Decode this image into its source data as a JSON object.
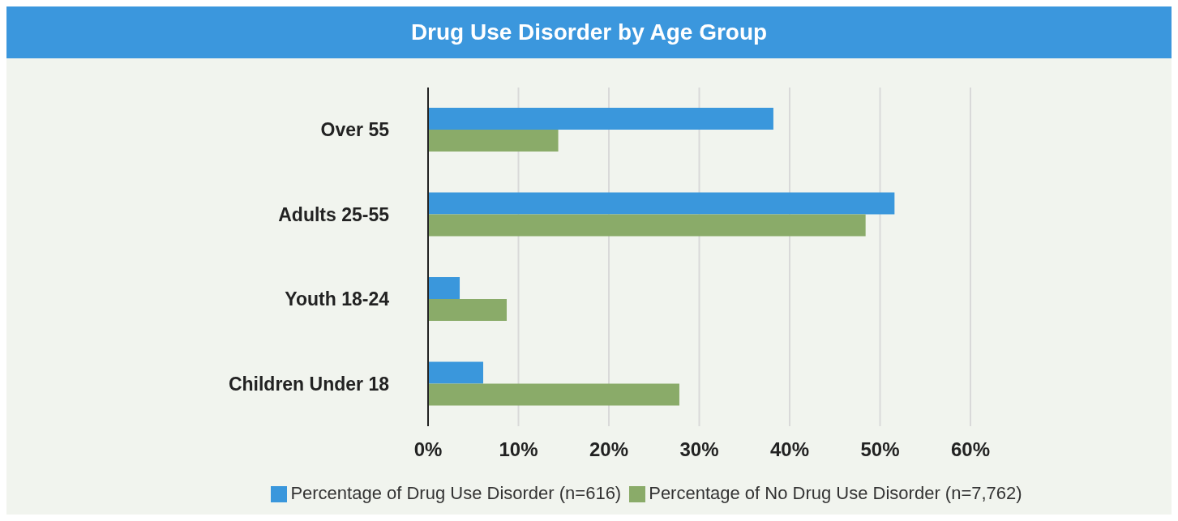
{
  "chart_data": {
    "type": "bar",
    "orientation": "horizontal",
    "title": "Drug Use Disorder by Age Group",
    "categories": [
      "Over 55",
      "Adults 25-55",
      "Youth 18-24",
      "Children Under 18"
    ],
    "series": [
      {
        "name": "Percentage of Drug Use Disorder (n=616)",
        "color": "#3a97dc",
        "values": [
          38.2,
          51.6,
          3.5,
          6.1
        ]
      },
      {
        "name": "Percentage of No Drug Use Disorder (n=7,762)",
        "color": "#8aab69",
        "values": [
          14.4,
          48.4,
          8.7,
          27.8
        ]
      }
    ],
    "xlim": [
      0,
      60
    ],
    "xticks": [
      {
        "value": 0,
        "label": "0%"
      },
      {
        "value": 10,
        "label": "10%"
      },
      {
        "value": 20,
        "label": "20%"
      },
      {
        "value": 30,
        "label": "30%"
      },
      {
        "value": 40,
        "label": "40%"
      },
      {
        "value": 50,
        "label": "50%"
      },
      {
        "value": 60,
        "label": "60%"
      }
    ],
    "grid": "x",
    "legend": "bottom"
  }
}
